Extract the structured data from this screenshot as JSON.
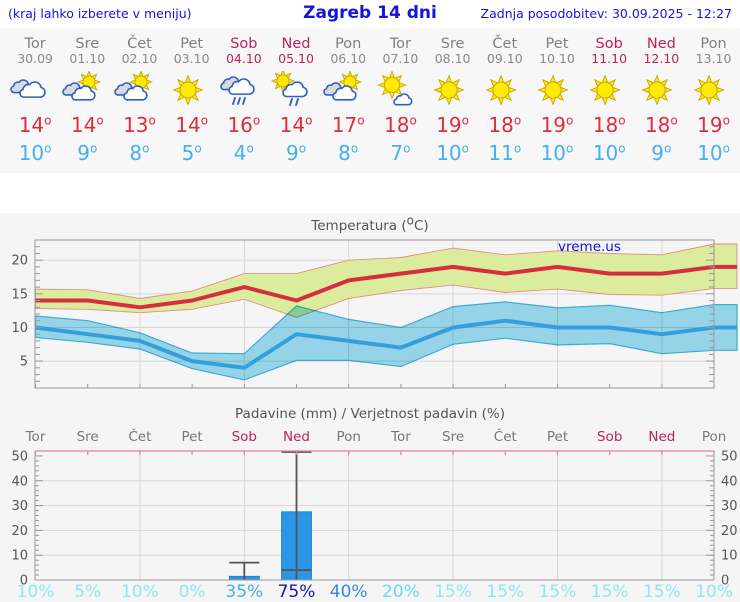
{
  "header": {
    "left_note": "(kraj lahko izberete v meniju)",
    "title": "Zagreb 14 dni",
    "updated": "Zadnja posodobitev: 30.09.2025 - 12:27"
  },
  "forecast": {
    "degree_symbol": "o",
    "days": [
      {
        "name": "Tor",
        "date": "30.09",
        "weekend": false,
        "icon": "cloudy",
        "tmax": "14",
        "tmin": "10"
      },
      {
        "name": "Sre",
        "date": "01.10",
        "weekend": false,
        "icon": "partly-cloudy",
        "tmax": "14",
        "tmin": "9"
      },
      {
        "name": "Čet",
        "date": "02.10",
        "weekend": false,
        "icon": "partly-cloudy",
        "tmax": "13",
        "tmin": "8"
      },
      {
        "name": "Pet",
        "date": "03.10",
        "weekend": false,
        "icon": "sunny",
        "tmax": "14",
        "tmin": "5"
      },
      {
        "name": "Sob",
        "date": "04.10",
        "weekend": true,
        "icon": "rain",
        "tmax": "16",
        "tmin": "4"
      },
      {
        "name": "Ned",
        "date": "05.10",
        "weekend": true,
        "icon": "sun-rain",
        "tmax": "14",
        "tmin": "9"
      },
      {
        "name": "Pon",
        "date": "06.10",
        "weekend": false,
        "icon": "partly-cloudy",
        "tmax": "17",
        "tmin": "8"
      },
      {
        "name": "Tor",
        "date": "07.10",
        "weekend": false,
        "icon": "mostly-sunny",
        "tmax": "18",
        "tmin": "7"
      },
      {
        "name": "Sre",
        "date": "08.10",
        "weekend": false,
        "icon": "sunny",
        "tmax": "19",
        "tmin": "10"
      },
      {
        "name": "Čet",
        "date": "09.10",
        "weekend": false,
        "icon": "sunny",
        "tmax": "18",
        "tmin": "11"
      },
      {
        "name": "Pet",
        "date": "10.10",
        "weekend": false,
        "icon": "sunny",
        "tmax": "19",
        "tmin": "10"
      },
      {
        "name": "Sob",
        "date": "11.10",
        "weekend": true,
        "icon": "sunny",
        "tmax": "18",
        "tmin": "10"
      },
      {
        "name": "Ned",
        "date": "12.10",
        "weekend": true,
        "icon": "sunny",
        "tmax": "18",
        "tmin": "9"
      },
      {
        "name": "Pon",
        "date": "13.10",
        "weekend": false,
        "icon": "sunny",
        "tmax": "19",
        "tmin": "10"
      }
    ]
  },
  "watermark": {
    "text": "vreme.us"
  },
  "chart_data": [
    {
      "type": "line",
      "title_prefix": "Temperatura (",
      "title_sup": "o",
      "title_suffix": "C)",
      "ylim": [
        1,
        23
      ],
      "yticks": [
        5,
        10,
        15,
        20
      ],
      "grid": true,
      "x_days": [
        "Tor",
        "Sre",
        "Čet",
        "Pet",
        "Sob",
        "Ned",
        "Pon",
        "Tor",
        "Sre",
        "Čet",
        "Pet",
        "Sob",
        "Ned",
        "Pon"
      ],
      "series": [
        {
          "name": "max_temp",
          "values": [
            14,
            14,
            13,
            14,
            16,
            14,
            17,
            18,
            19,
            18,
            19,
            18,
            18,
            19
          ]
        },
        {
          "name": "min_temp",
          "values": [
            10,
            9,
            8,
            5,
            4,
            9,
            8,
            7,
            10,
            11,
            10,
            10,
            9,
            10
          ]
        },
        {
          "name": "max_band_high",
          "values": [
            15.7,
            15.6,
            14.3,
            15.4,
            18,
            18,
            20,
            20.4,
            21.8,
            20.8,
            21.4,
            21,
            20.8,
            22.4
          ]
        },
        {
          "name": "max_band_low",
          "values": [
            12.8,
            12.7,
            12.2,
            12.7,
            14.2,
            11.5,
            14.3,
            15.5,
            16.3,
            15.2,
            15.7,
            14.9,
            14.8,
            15.8
          ]
        },
        {
          "name": "min_band_high",
          "values": [
            11.7,
            11,
            9.2,
            6.2,
            6.1,
            13.2,
            11.2,
            10,
            13.1,
            13.8,
            12.9,
            13.3,
            12.2,
            13.4
          ]
        },
        {
          "name": "min_band_low",
          "values": [
            8.5,
            7.8,
            6.8,
            3.9,
            2.2,
            5.1,
            5.1,
            4.2,
            7.5,
            8.4,
            7.4,
            7.6,
            6.1,
            6.6
          ]
        }
      ]
    },
    {
      "type": "bar",
      "title": "Padavine (mm) / Verjetnost padavin (%)",
      "ylim": [
        0,
        52
      ],
      "yticks": [
        0,
        10,
        20,
        30,
        40,
        50
      ],
      "grid": true,
      "categories": [
        "Tor",
        "Sre",
        "Čet",
        "Pet",
        "Sob",
        "Ned",
        "Pon",
        "Tor",
        "Sre",
        "Čet",
        "Pet",
        "Sob",
        "Ned",
        "Pon"
      ],
      "weekend_flags": [
        false,
        false,
        false,
        false,
        true,
        true,
        false,
        false,
        false,
        false,
        false,
        true,
        true,
        false
      ],
      "precip_mm": [
        0,
        0,
        0,
        0,
        1.5,
        27.5,
        0,
        0,
        0,
        0,
        0,
        0,
        0,
        0
      ],
      "range_low_mm": [
        0,
        0,
        0,
        0,
        0,
        4,
        0,
        0,
        0,
        0,
        0,
        0,
        0,
        0
      ],
      "range_high_mm": [
        0,
        0,
        0,
        0,
        7,
        52,
        0,
        0,
        0,
        0,
        0,
        0,
        0,
        0
      ],
      "probability_pct": [
        "10%",
        "5%",
        "10%",
        "0%",
        "35%",
        "75%",
        "40%",
        "20%",
        "15%",
        "15%",
        "15%",
        "15%",
        "15%",
        "10%"
      ],
      "probability_colors": [
        "#8ae8f8",
        "#8ae8f8",
        "#8ae8f8",
        "#8ae8f8",
        "#46aee8",
        "#1818b0",
        "#2b8ce0",
        "#6cd8f5",
        "#8ae8f8",
        "#8ae8f8",
        "#8ae8f8",
        "#8ae8f8",
        "#8ae8f8",
        "#8ae8f8"
      ]
    }
  ],
  "colors": {
    "header_blue": "#1414e0",
    "weekday_gray": "#808080",
    "weekend_red": "#c02060",
    "tmax_red": "#dc2f3e",
    "tmin_blue": "#45b0ee",
    "line_red": "#d62e3e",
    "line_blue": "#339fdc",
    "band_green": "#dcec9f",
    "band_green_edge": "#e09080",
    "band_cyan": "#9addf0",
    "band_cyan_edge": "#41b1e4",
    "bar_blue": "#2a96e8",
    "whisker_gray": "#555555",
    "grid_gray": "#d6d6d6",
    "frame_gray": "#999999",
    "pink_axis": "#e0849a",
    "sun_yellow": "#ffea00",
    "sun_edge": "#c9a40a",
    "cloud_edge": "#2d5fc8",
    "cloud_gray": "#d9d9d9"
  }
}
